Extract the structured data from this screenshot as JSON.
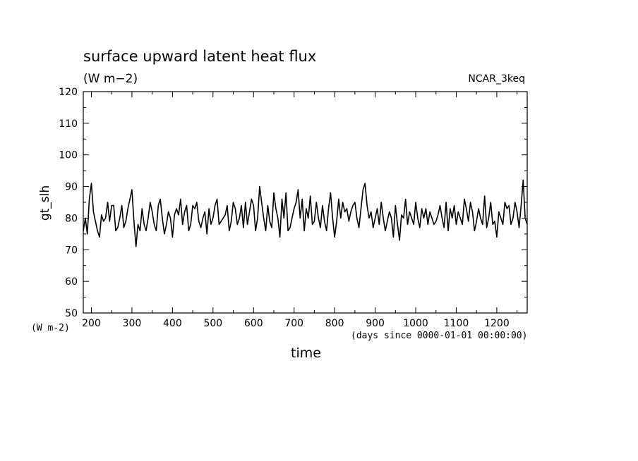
{
  "chart_data": {
    "type": "line",
    "title": "surface upward latent heat flux",
    "subtitle": "(W m−2)",
    "model": "NCAR_3keq",
    "xlabel": "time",
    "x_units": "(days since 0000-01-01 00:00:00)",
    "ylabel": "gt_slh",
    "y_units": "(W m-2)",
    "xlim": [
      180,
      1275
    ],
    "ylim": [
      50,
      120
    ],
    "xticks": [
      200,
      300,
      400,
      500,
      600,
      700,
      800,
      900,
      1000,
      1100,
      1200
    ],
    "xtick_labels": [
      "200",
      "300",
      "400",
      "500",
      "600",
      "700",
      "800",
      "900",
      "1000",
      "1100",
      "1200"
    ],
    "yticks": [
      50,
      60,
      70,
      80,
      90,
      100,
      110,
      120
    ],
    "ytick_labels": [
      "50",
      "60",
      "70",
      "80",
      "90",
      "100",
      "110",
      "120"
    ],
    "grid": false,
    "series": [
      {
        "color": "#000000",
        "x": [
          180,
          185,
          190,
          195,
          200,
          205,
          210,
          215,
          220,
          225,
          230,
          235,
          240,
          245,
          250,
          255,
          260,
          265,
          270,
          275,
          280,
          285,
          290,
          295,
          300,
          305,
          310,
          315,
          320,
          325,
          330,
          335,
          340,
          345,
          350,
          355,
          360,
          365,
          370,
          375,
          380,
          385,
          390,
          395,
          400,
          405,
          410,
          415,
          420,
          425,
          430,
          435,
          440,
          445,
          450,
          455,
          460,
          465,
          470,
          475,
          480,
          485,
          490,
          495,
          500,
          505,
          510,
          515,
          520,
          525,
          530,
          535,
          540,
          545,
          550,
          555,
          560,
          565,
          570,
          575,
          580,
          585,
          590,
          595,
          600,
          605,
          610,
          615,
          620,
          625,
          630,
          635,
          640,
          645,
          650,
          655,
          660,
          665,
          670,
          675,
          680,
          685,
          690,
          695,
          700,
          705,
          710,
          715,
          720,
          725,
          730,
          735,
          740,
          745,
          750,
          755,
          760,
          765,
          770,
          775,
          780,
          785,
          790,
          795,
          800,
          805,
          810,
          815,
          820,
          825,
          830,
          835,
          840,
          845,
          850,
          855,
          860,
          865,
          870,
          875,
          880,
          885,
          890,
          895,
          900,
          905,
          910,
          915,
          920,
          925,
          930,
          935,
          940,
          945,
          950,
          955,
          960,
          965,
          970,
          975,
          980,
          985,
          990,
          995,
          1000,
          1005,
          1010,
          1015,
          1020,
          1025,
          1030,
          1035,
          1040,
          1045,
          1050,
          1055,
          1060,
          1065,
          1070,
          1075,
          1080,
          1085,
          1090,
          1095,
          1100,
          1105,
          1110,
          1115,
          1120,
          1125,
          1130,
          1135,
          1140,
          1145,
          1150,
          1155,
          1160,
          1165,
          1170,
          1175,
          1180,
          1185,
          1190,
          1195,
          1200,
          1205,
          1210,
          1215,
          1220,
          1225,
          1230,
          1235,
          1240,
          1245,
          1250,
          1255,
          1260,
          1265,
          1270,
          1275
        ],
        "y": [
          76,
          80,
          75,
          86,
          91,
          82,
          79,
          76,
          74,
          81,
          79,
          80,
          85,
          79,
          84,
          84,
          76,
          77,
          80,
          84,
          77,
          79,
          83,
          86,
          89,
          79,
          71,
          78,
          76,
          83,
          78,
          76,
          80,
          85,
          82,
          78,
          76,
          84,
          86,
          80,
          75,
          78,
          82,
          80,
          74,
          81,
          83,
          81,
          86,
          78,
          82,
          84,
          76,
          78,
          84,
          83,
          85,
          79,
          77,
          80,
          82,
          75,
          83,
          78,
          80,
          84,
          86,
          78,
          79,
          80,
          81,
          84,
          76,
          79,
          85,
          83,
          78,
          80,
          84,
          77,
          85,
          78,
          82,
          86,
          84,
          76,
          80,
          90,
          85,
          80,
          76,
          84,
          79,
          77,
          88,
          83,
          80,
          74,
          86,
          80,
          88,
          76,
          77,
          80,
          83,
          85,
          89,
          80,
          86,
          76,
          83,
          80,
          87,
          78,
          79,
          85,
          80,
          77,
          84,
          79,
          76,
          83,
          88,
          80,
          74,
          79,
          86,
          80,
          85,
          82,
          83,
          79,
          82,
          84,
          85,
          80,
          77,
          83,
          89,
          91,
          84,
          80,
          82,
          77,
          80,
          83,
          78,
          85,
          80,
          76,
          79,
          82,
          80,
          74,
          84,
          78,
          73,
          81,
          80,
          86,
          78,
          82,
          80,
          78,
          85,
          80,
          77,
          83,
          80,
          83,
          78,
          82,
          80,
          78,
          79,
          81,
          84,
          80,
          77,
          85,
          76,
          83,
          80,
          84,
          78,
          82,
          80,
          78,
          86,
          83,
          79,
          85,
          82,
          76,
          79,
          83,
          80,
          78,
          87,
          77,
          80,
          85,
          78,
          79,
          74,
          82,
          80,
          78,
          85,
          83,
          84,
          78,
          80,
          85,
          82,
          77,
          84,
          92,
          80,
          78
        ],
        "values_estimated": true
      }
    ]
  }
}
